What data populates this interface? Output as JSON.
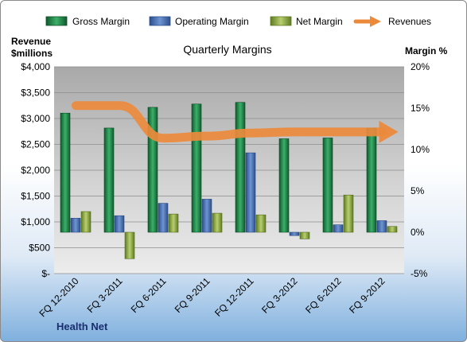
{
  "chart_data": {
    "type": "bar",
    "title": "Quarterly Margins",
    "footer_label": "Health Net",
    "y_left_label_line1": "Revenue",
    "y_left_label_line2": "$millions",
    "y_right_label": "Margin %",
    "categories": [
      "FQ 12-2010",
      "FQ 3-2011",
      "FQ 6-2011",
      "FQ 9-2011",
      "FQ 12-2011",
      "FQ 3-2012",
      "FQ 6-2012",
      "FQ 9-2012"
    ],
    "left_axis": {
      "min": 0,
      "max": 4000,
      "ticks": [
        0,
        500,
        1000,
        1500,
        2000,
        2500,
        3000,
        3500,
        4000
      ],
      "tick_labels": [
        "$-",
        "$500",
        "$1,000",
        "$1,500",
        "$2,000",
        "$2,500",
        "$3,000",
        "$3,500",
        "$4,000"
      ]
    },
    "right_axis": {
      "min": -5,
      "max": 20,
      "ticks": [
        -5,
        0,
        5,
        10,
        15,
        20
      ],
      "tick_labels": [
        "-5%",
        "0%",
        "5%",
        "10%",
        "15%",
        "20%"
      ]
    },
    "series": [
      {
        "name": "Gross Margin",
        "axis": "right",
        "color": "#1f8a4a",
        "values": [
          14.4,
          12.6,
          15.1,
          15.5,
          15.7,
          11.3,
          11.4,
          12.6
        ]
      },
      {
        "name": "Operating Margin",
        "axis": "right",
        "color": "#4a74b8",
        "values": [
          1.7,
          2.0,
          3.5,
          4.0,
          9.6,
          -0.4,
          0.9,
          1.4
        ]
      },
      {
        "name": "Net Margin",
        "axis": "right",
        "color": "#96b04a",
        "values": [
          2.5,
          -3.2,
          2.2,
          2.3,
          2.1,
          -0.8,
          4.5,
          0.7
        ]
      },
      {
        "name": "Revenues",
        "axis": "left",
        "type": "line",
        "color": "#ec8a3c",
        "values": [
          3250,
          3250,
          2620,
          2660,
          2720,
          2740,
          2740,
          2740
        ]
      }
    ],
    "legend_position": "top"
  }
}
